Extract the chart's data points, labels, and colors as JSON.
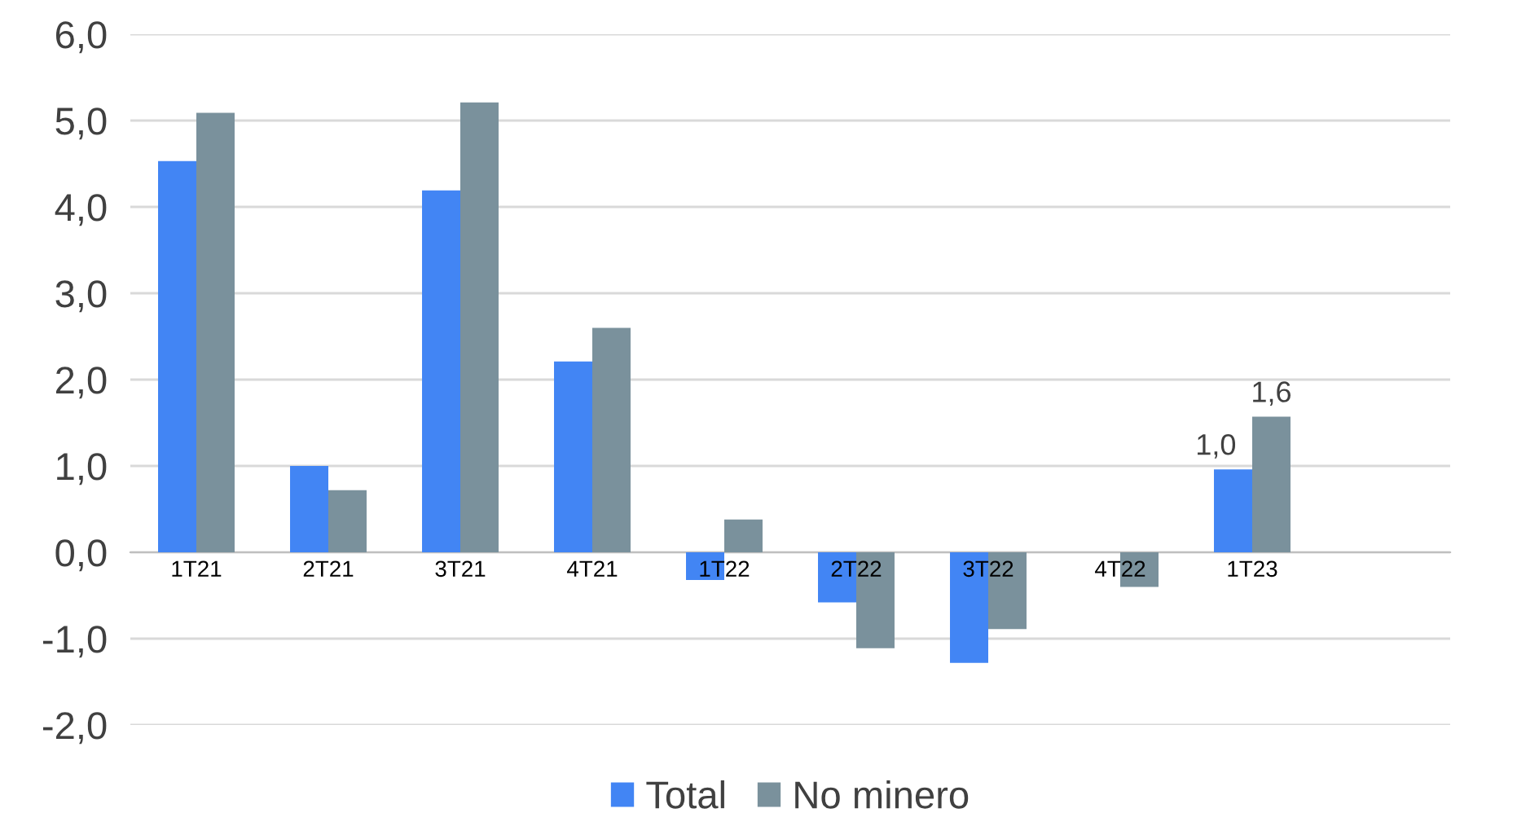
{
  "chart_data": {
    "type": "bar",
    "categories": [
      "1T21",
      "2T21",
      "3T21",
      "4T21",
      "1T22",
      "2T22",
      "3T22",
      "4T22",
      "1T23",
      null
    ],
    "series": [
      {
        "name": "Total",
        "color": "#4285f4",
        "values": [
          4.53,
          1.0,
          4.19,
          2.21,
          -0.32,
          -0.58,
          -1.28,
          0.0,
          0.96,
          null
        ],
        "value_labels": [
          null,
          null,
          null,
          null,
          null,
          null,
          null,
          null,
          "1,0",
          null
        ]
      },
      {
        "name": "No minero",
        "color": "#7a919c",
        "values": [
          5.09,
          0.72,
          5.21,
          2.6,
          0.38,
          -1.11,
          -0.89,
          -0.4,
          1.57,
          null
        ],
        "value_labels": [
          null,
          null,
          null,
          null,
          null,
          null,
          null,
          null,
          "1,6",
          null
        ]
      }
    ],
    "ylim": [
      -2.0,
      6.0
    ],
    "yticks": [
      {
        "value": -2,
        "label": "-2,0"
      },
      {
        "value": -1,
        "label": "-1,0"
      },
      {
        "value": 0,
        "label": "0,0"
      },
      {
        "value": 1,
        "label": "1,0"
      },
      {
        "value": 2,
        "label": "2,0"
      },
      {
        "value": 3,
        "label": "3,0"
      },
      {
        "value": 4,
        "label": "4,0"
      },
      {
        "value": 5,
        "label": "5,0"
      },
      {
        "value": 6,
        "label": "6,0"
      }
    ],
    "grid": "y",
    "legend": "bottom"
  }
}
